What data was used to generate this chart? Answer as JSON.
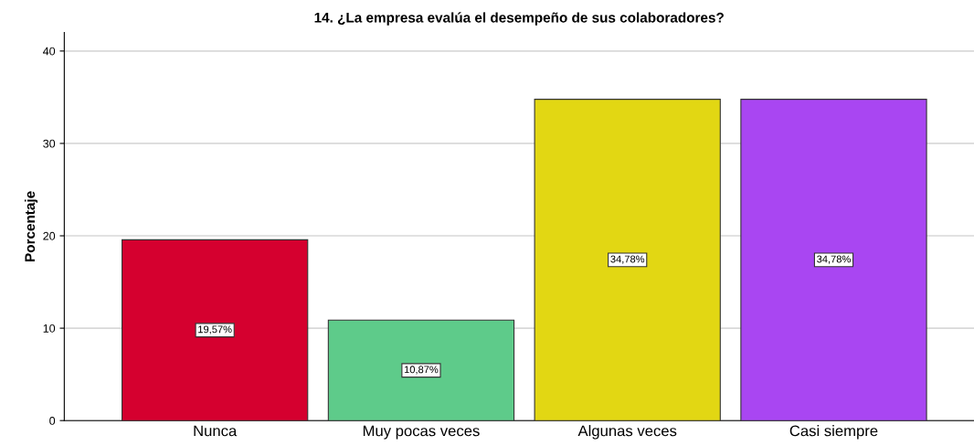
{
  "chart_data": {
    "type": "bar",
    "title": "14. ¿La empresa evalúa el desempeño de sus colaboradores?",
    "ylabel": "Porcentaje",
    "categories": [
      "Nunca",
      "Muy pocas veces",
      "Algunas veces",
      "Casi siempre"
    ],
    "values": [
      19.57,
      10.87,
      34.78,
      34.78
    ],
    "colors": [
      "#d5002f",
      "#5ecb8a",
      "#e2d713",
      "#a946f2"
    ],
    "value_labels": [
      "19,57%",
      "10,87%",
      "34,78%",
      "34,78%"
    ],
    "ylim": [
      0,
      42
    ],
    "yticks": [
      0,
      10,
      20,
      30,
      40
    ],
    "grid": "y"
  }
}
